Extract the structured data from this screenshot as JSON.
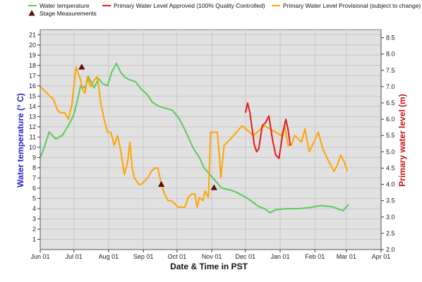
{
  "chart_data": {
    "type": "line",
    "xlabel": "Date & Time in PST",
    "ylabel_left": "Water temperature (° C)",
    "ylabel_right": "Primary water level (m)",
    "x_ticks": [
      "Jun 01",
      "Jul 01",
      "Aug 01",
      "Sep 01",
      "Oct 01",
      "Nov 01",
      "Dec 01",
      "Jan 01",
      "Feb 01",
      "Mar 01",
      "Apr 01"
    ],
    "y_left_ticks": [
      "1",
      "2",
      "3",
      "4",
      "5",
      "6",
      "7",
      "8",
      "9",
      "10",
      "11",
      "12",
      "13",
      "14",
      "15",
      "16",
      "17",
      "18",
      "19",
      "20",
      "21"
    ],
    "y_right_ticks": [
      "2.0",
      "2.5",
      "3.0",
      "3.5",
      "4.0",
      "4.5",
      "5.0",
      "5.5",
      "6.0",
      "6.5",
      "7.0",
      "7.5",
      "8.0",
      "8.5"
    ],
    "ylim_left": [
      0,
      21.5
    ],
    "ylim_right": [
      2.0,
      8.75
    ],
    "grid": true,
    "legend_position": "top",
    "legend": [
      {
        "name": "Water temperature",
        "color": "#5ec85e",
        "marker": "line"
      },
      {
        "name": "Primary Water Level Approved (100% Quality Controlled)",
        "color": "#e41a1c",
        "marker": "line"
      },
      {
        "name": "Primary Water Level Provisional (subject to change)",
        "color": "#ffa500",
        "marker": "line"
      },
      {
        "name": "Stage Measurements",
        "color": "#cc1111",
        "marker": "triangle"
      }
    ],
    "series": [
      {
        "name": "Water temperature",
        "axis": "left",
        "color": "#5ec85e",
        "x_days": [
          0,
          3,
          8,
          14,
          20,
          26,
          30,
          33,
          36,
          40,
          43,
          48,
          52,
          56,
          60,
          64,
          68,
          72,
          76,
          80,
          85,
          90,
          95,
          100,
          106,
          112,
          118,
          124,
          130,
          136,
          142,
          146,
          150,
          154,
          158,
          162,
          166,
          170,
          175,
          180,
          185,
          190,
          195,
          200,
          205,
          210,
          220,
          230,
          240,
          250,
          260,
          265,
          270,
          275
        ],
        "y": [
          9.0,
          9.8,
          11.5,
          10.8,
          11.2,
          12.3,
          13.2,
          14.5,
          16.0,
          15.8,
          16.9,
          15.8,
          16.7,
          16.2,
          16.0,
          17.4,
          18.2,
          17.3,
          16.8,
          16.6,
          16.4,
          15.7,
          15.2,
          14.4,
          14.0,
          13.8,
          13.6,
          12.8,
          11.5,
          10.0,
          9.0,
          8.0,
          7.5,
          7.0,
          6.5,
          6.0,
          5.9,
          5.8,
          5.6,
          5.3,
          5.0,
          4.6,
          4.2,
          4.0,
          3.6,
          3.9,
          4.0,
          4.0,
          4.1,
          4.3,
          4.2,
          4.0,
          3.8,
          4.4
        ]
      },
      {
        "name": "Primary Water Level Provisional (subject to change)",
        "axis": "right",
        "color": "#ffa500",
        "x_days": [
          0,
          3,
          6,
          9,
          12,
          15,
          18,
          22,
          25,
          28,
          30,
          32,
          34,
          36,
          38,
          40,
          42,
          45,
          48,
          51,
          54,
          57,
          60,
          63,
          66,
          69,
          72,
          75,
          78,
          80,
          82,
          84,
          86,
          88,
          90,
          93,
          96,
          99,
          102,
          105,
          108,
          111,
          114,
          117,
          120,
          123,
          126,
          129,
          132,
          135,
          138,
          140,
          142,
          145,
          147,
          150,
          152,
          155,
          158,
          160,
          161,
          164,
          170,
          180,
          190,
          200,
          210,
          215,
          218,
          221,
          224,
          227,
          230,
          233,
          236,
          240,
          244,
          248,
          252,
          256,
          259,
          262,
          265,
          268,
          271,
          274
        ],
        "y": [
          7.0,
          6.9,
          6.8,
          6.7,
          6.6,
          6.3,
          6.2,
          6.2,
          6.0,
          6.4,
          7.0,
          7.6,
          7.4,
          7.2,
          6.9,
          6.8,
          7.3,
          7.0,
          7.2,
          7.3,
          6.5,
          6.0,
          5.6,
          5.6,
          5.2,
          5.5,
          5.0,
          4.3,
          4.7,
          5.3,
          4.5,
          4.2,
          4.1,
          4.0,
          4.0,
          4.1,
          4.2,
          4.4,
          4.5,
          4.5,
          4.0,
          3.7,
          3.5,
          3.5,
          3.4,
          3.3,
          3.3,
          3.3,
          3.6,
          3.7,
          3.7,
          3.3,
          3.6,
          3.5,
          3.8,
          3.6,
          5.6,
          5.6,
          5.6,
          4.8,
          4.2,
          5.2,
          5.4,
          5.8,
          5.5,
          5.8,
          5.6,
          5.5,
          5.8,
          5.2,
          5.2,
          5.5,
          5.4,
          5.3,
          5.7,
          5.0,
          5.3,
          5.6,
          5.1,
          4.8,
          4.6,
          4.4,
          4.6,
          4.9,
          4.7,
          4.4
        ]
      },
      {
        "name": "Primary Water Level Approved (100% Quality Controlled)",
        "axis": "right",
        "color": "#e41a1c",
        "segments": [
          {
            "x_days": [
              183,
              185,
              187,
              189,
              191,
              193,
              195,
              198,
              201,
              204,
              207,
              210,
              213,
              216,
              219,
              221,
              223
            ],
            "y": [
              6.2,
              6.5,
              6.2,
              5.7,
              5.2,
              5.0,
              5.1,
              5.8,
              5.9,
              6.1,
              5.4,
              4.9,
              4.8,
              5.5,
              6.0,
              5.7,
              5.2
            ]
          }
        ]
      }
    ],
    "stage_measurements": [
      {
        "x_days": 37,
        "y": 7.6
      },
      {
        "x_days": 108,
        "y": 4.0
      },
      {
        "x_days": 155,
        "y": 3.9
      }
    ]
  }
}
